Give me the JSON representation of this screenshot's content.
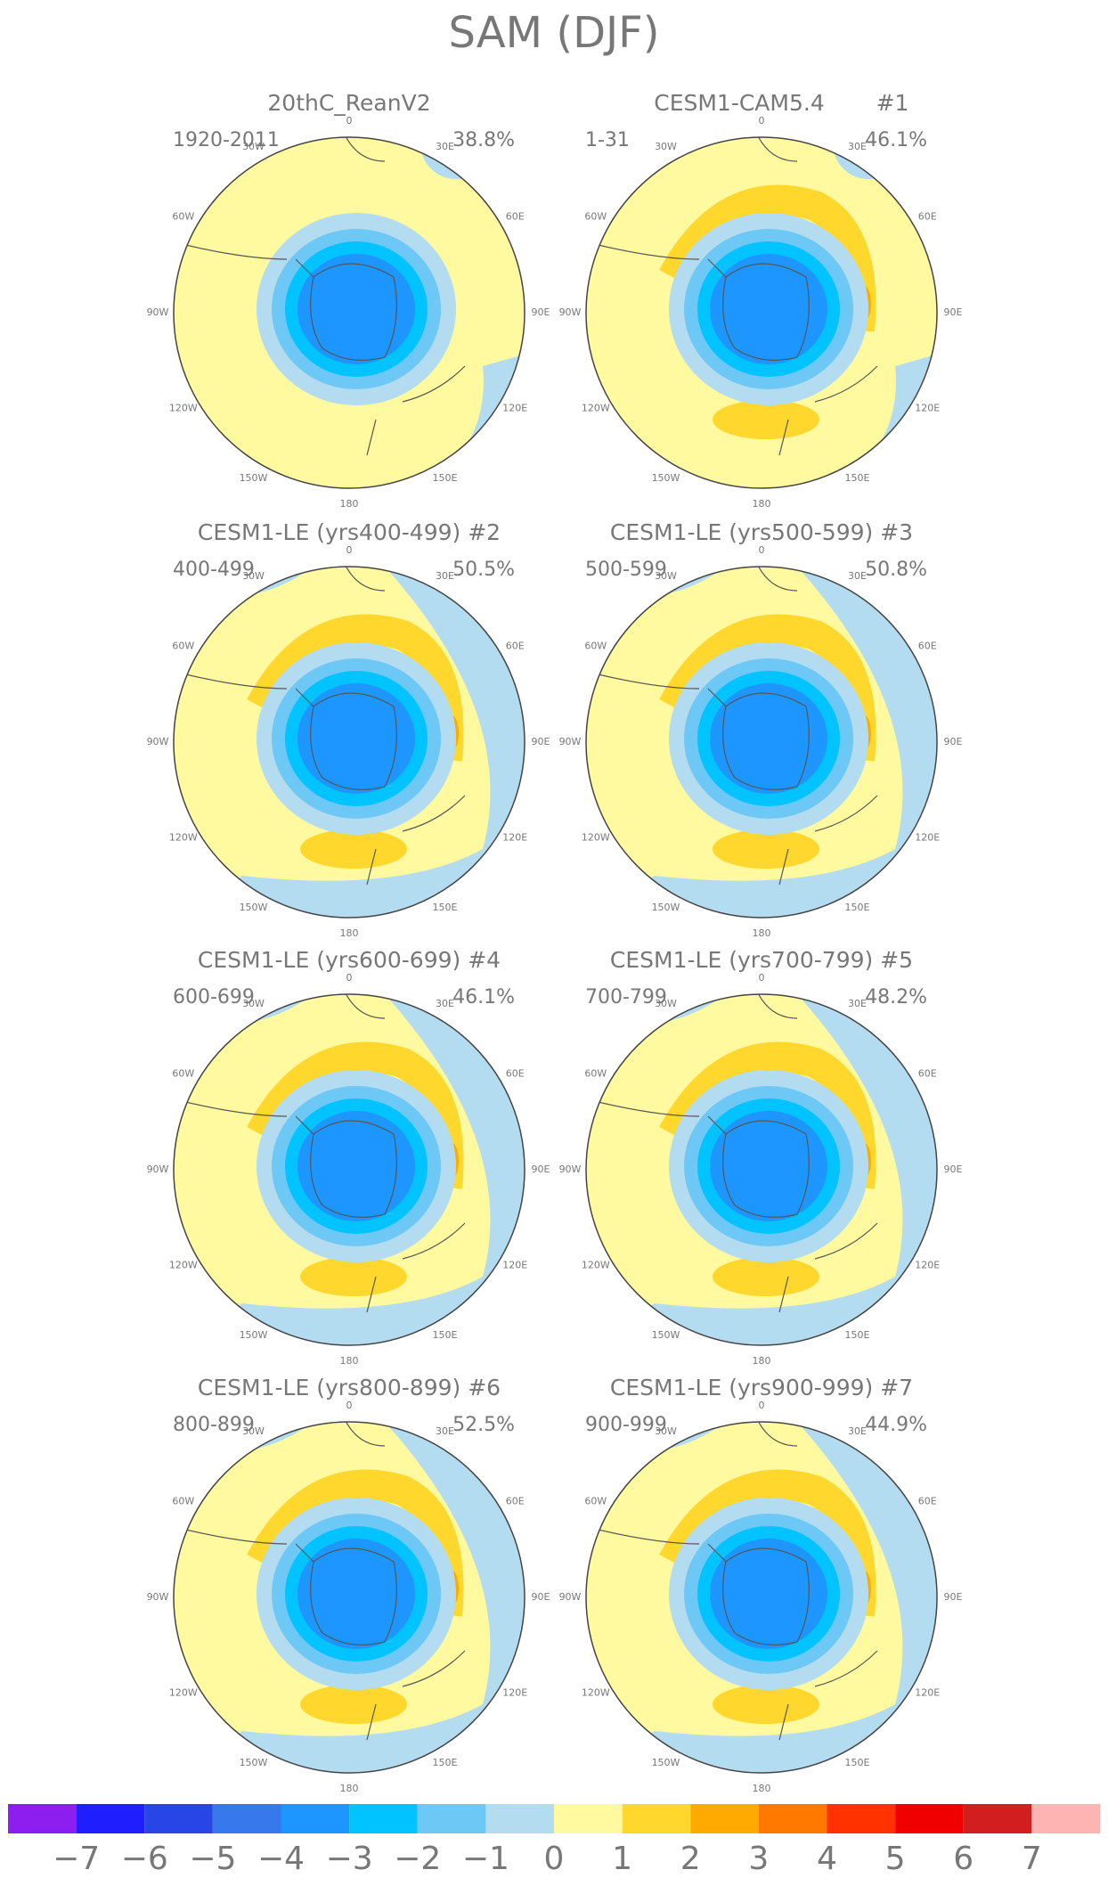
{
  "title": "SAM (DJF)",
  "panels": [
    {
      "title": "20thC_ReanV2",
      "period": "1920-2011",
      "percent": "38.8%"
    },
    {
      "title": "CESM1-CAM5.4",
      "number": "#1",
      "period": "1-31",
      "percent": "46.1%"
    },
    {
      "title": "CESM1-LE (yrs400-499) #2",
      "period": "400-499",
      "percent": "50.5%"
    },
    {
      "title": "CESM1-LE (yrs500-599) #3",
      "period": "500-599",
      "percent": "50.8%"
    },
    {
      "title": "CESM1-LE (yrs600-699) #4",
      "period": "600-699",
      "percent": "46.1%"
    },
    {
      "title": "CESM1-LE (yrs700-799) #5",
      "period": "700-799",
      "percent": "48.2%"
    },
    {
      "title": "CESM1-LE (yrs800-899) #6",
      "period": "800-899",
      "percent": "52.5%"
    },
    {
      "title": "CESM1-LE (yrs900-999) #7",
      "period": "900-999",
      "percent": "44.9%"
    }
  ],
  "lon_labels": [
    "0",
    "30E",
    "60E",
    "90E",
    "120E",
    "150E",
    "180",
    "150W",
    "120W",
    "90W",
    "60W",
    "30W"
  ],
  "colorbar": {
    "colors": [
      "#8c1ef0",
      "#1e1eff",
      "#2846e6",
      "#3778ec",
      "#1e96ff",
      "#00c3ff",
      "#6ec8f5",
      "#b4dcf0",
      "#fffaa0",
      "#ffd72d",
      "#ffaa00",
      "#ff7800",
      "#ff3200",
      "#f00000",
      "#d21e1e",
      "#ffb4b4"
    ],
    "labels": [
      "−7",
      "−6",
      "−5",
      "−4",
      "−3",
      "−2",
      "−1",
      "0",
      "1",
      "2",
      "3",
      "4",
      "5",
      "6",
      "7"
    ]
  }
}
